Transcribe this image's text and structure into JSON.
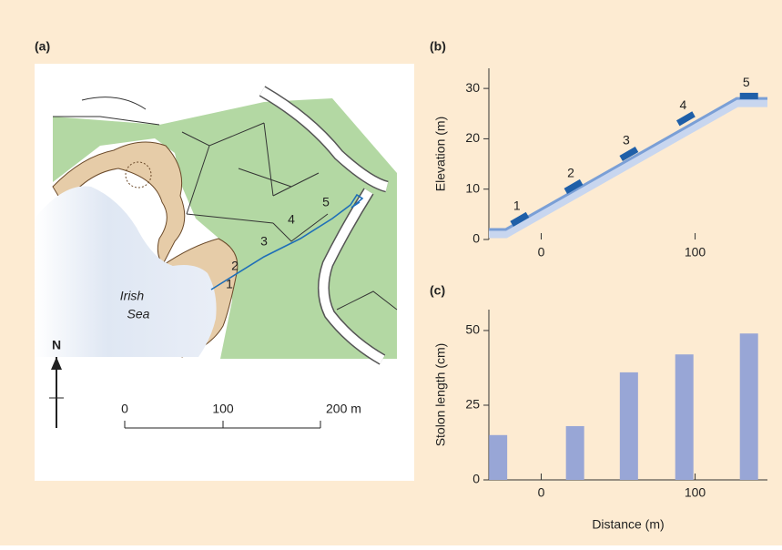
{
  "map": {
    "panel_label": "(a)",
    "sea_label": [
      "Irish",
      "Sea"
    ],
    "site_labels": [
      "1",
      "2",
      "3",
      "4",
      "5"
    ],
    "north": "N",
    "scale_labels": [
      "0",
      "100",
      "200 m"
    ]
  },
  "chart_data": [
    {
      "type": "line",
      "panel_label": "(b)",
      "y_label": "Elevation (m)",
      "x": [
        -34,
        -23,
        127,
        147
      ],
      "values": [
        2,
        2,
        28,
        28
      ],
      "color": "#7a9fd6",
      "sites": {
        "x": [
          -14,
          21,
          57,
          94,
          135
        ],
        "values": [
          4,
          10.5,
          17,
          24,
          28.5
        ],
        "labels": [
          "1",
          "2",
          "3",
          "4",
          "5"
        ],
        "color": "#1f5fa8"
      },
      "xlim": [
        -34,
        147
      ],
      "ylim": [
        0,
        34
      ],
      "xticks": [
        0,
        100
      ],
      "yticks": [
        0,
        10,
        20,
        30
      ]
    },
    {
      "type": "bar",
      "panel_label": "(c)",
      "y_label": "Stolon length (cm)",
      "x_label": "Distance (m)",
      "x": [
        -28,
        22,
        57,
        93,
        135
      ],
      "values": [
        15,
        18,
        36,
        42,
        49
      ],
      "color": "#98a6d6",
      "xlim": [
        -34,
        147
      ],
      "ylim": [
        0,
        57
      ],
      "xticks": [
        0,
        100
      ],
      "yticks": [
        0,
        25,
        50
      ]
    }
  ]
}
